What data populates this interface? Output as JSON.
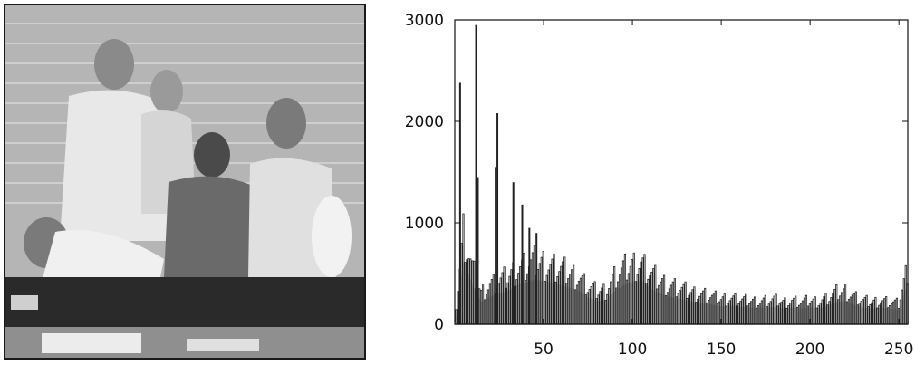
{
  "photo": {
    "description_icon": "group-photo-grayscale"
  },
  "chart_data": {
    "type": "bar",
    "title": "",
    "xlabel": "",
    "ylabel": "",
    "xlim": [
      0,
      255
    ],
    "ylim": [
      0,
      3000
    ],
    "x_ticks": [
      50,
      100,
      150,
      200,
      250
    ],
    "y_ticks": [
      0,
      1000,
      2000,
      3000
    ],
    "x_tick_labels": [
      "50",
      "100",
      "150",
      "200",
      "250"
    ],
    "y_tick_labels": [
      "0",
      "1000",
      "2000",
      "3000"
    ],
    "grid": false,
    "legend": "none",
    "bar_color": "#222222",
    "spikes": [
      {
        "x": 3,
        "y": 2380
      },
      {
        "x": 12,
        "y": 2950
      },
      {
        "x": 13,
        "y": 1450
      },
      {
        "x": 24,
        "y": 2080
      },
      {
        "x": 23,
        "y": 1550
      },
      {
        "x": 33,
        "y": 1400
      },
      {
        "x": 38,
        "y": 1180
      },
      {
        "x": 42,
        "y": 950
      },
      {
        "x": 46,
        "y": 900
      }
    ],
    "envelope": {
      "x": [
        0,
        5,
        10,
        15,
        20,
        25,
        30,
        35,
        40,
        45,
        50,
        55,
        60,
        65,
        70,
        75,
        80,
        85,
        90,
        95,
        100,
        105,
        110,
        115,
        120,
        125,
        130,
        135,
        140,
        145,
        150,
        155,
        160,
        165,
        170,
        175,
        180,
        185,
        190,
        195,
        200,
        205,
        210,
        215,
        220,
        225,
        230,
        235,
        240,
        245,
        250,
        255
      ],
      "y": [
        0,
        1150,
        700,
        400,
        500,
        550,
        600,
        700,
        750,
        800,
        780,
        740,
        700,
        650,
        600,
        480,
        420,
        430,
        600,
        700,
        760,
        780,
        650,
        560,
        500,
        470,
        430,
        400,
        380,
        350,
        320,
        330,
        310,
        300,
        290,
        300,
        310,
        280,
        300,
        280,
        300,
        290,
        330,
        400,
        420,
        350,
        300,
        280,
        300,
        280,
        260,
        720
      ]
    }
  }
}
